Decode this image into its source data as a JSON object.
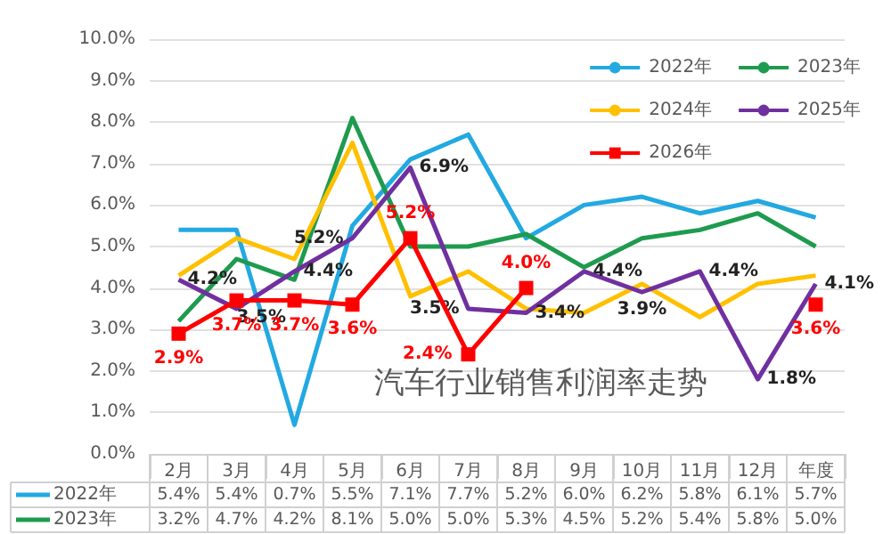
{
  "chart_data": {
    "type": "line",
    "title": "汽车行业销售利润率走势",
    "categories": [
      "2月",
      "3月",
      "4月",
      "5月",
      "6月",
      "7月",
      "8月",
      "9月",
      "10月",
      "11月",
      "12月",
      "年度"
    ],
    "series": [
      {
        "name": "2022年",
        "color": "#22a9e1",
        "values": [
          5.4,
          5.4,
          0.7,
          5.5,
          7.1,
          7.7,
          5.2,
          6.0,
          6.2,
          5.8,
          6.1,
          5.7
        ],
        "value_labels": [
          "5.4%",
          "5.4%",
          "0.7%",
          "5.5%",
          "7.1%",
          "7.7%",
          "5.2%",
          "6.0%",
          "6.2%",
          "5.8%",
          "6.1%",
          "5.7%"
        ]
      },
      {
        "name": "2023年",
        "color": "#1e9b4e",
        "values": [
          3.2,
          4.7,
          4.2,
          8.1,
          5.0,
          5.0,
          5.3,
          4.5,
          5.2,
          5.4,
          5.8,
          5.0
        ],
        "value_labels": [
          "3.2%",
          "4.7%",
          "4.2%",
          "8.1%",
          "5.0%",
          "5.0%",
          "5.3%",
          "4.5%",
          "5.2%",
          "5.4%",
          "5.8%",
          "5.0%"
        ]
      },
      {
        "name": "2024年",
        "color": "#ffc000",
        "values": [
          4.3,
          5.2,
          4.7,
          7.5,
          3.8,
          4.4,
          3.5,
          3.4,
          4.1,
          3.3,
          4.1,
          4.3
        ]
      },
      {
        "name": "2025年",
        "color": "#7030a0",
        "values": [
          4.2,
          3.5,
          4.4,
          5.2,
          6.9,
          3.5,
          3.4,
          4.4,
          3.9,
          4.4,
          1.8,
          4.1
        ],
        "value_labels": [
          "4.2%",
          "3.5%",
          "4.4%",
          "5.2%",
          "6.9%",
          "3.5%",
          "3.4%",
          "4.4%",
          "3.9%",
          "4.4%",
          "1.8%",
          "4.1%"
        ]
      },
      {
        "name": "2026年",
        "color": "#ff0000",
        "marker": "square",
        "values": [
          2.9,
          3.7,
          3.7,
          3.6,
          5.2,
          2.4,
          4.0,
          null,
          null,
          null,
          null,
          3.6
        ],
        "value_labels": [
          "2.9%",
          "3.7%",
          "3.7%",
          "3.6%",
          "5.2%",
          "2.4%",
          "4.0%",
          null,
          null,
          null,
          null,
          "3.6%"
        ]
      }
    ],
    "marker": "none",
    "ylim": [
      0,
      10
    ],
    "yticks": [
      {
        "value": 0,
        "label": "0.0%"
      },
      {
        "value": 1,
        "label": "1.0%"
      },
      {
        "value": 2,
        "label": "2.0%"
      },
      {
        "value": 3,
        "label": "3.0%"
      },
      {
        "value": 4,
        "label": "4.0%"
      },
      {
        "value": 5,
        "label": "5.0%"
      },
      {
        "value": 6,
        "label": "6.0%"
      },
      {
        "value": 7,
        "label": "7.0%"
      },
      {
        "value": 8,
        "label": "8.0%"
      },
      {
        "value": 9,
        "label": "9.0%"
      },
      {
        "value": 10,
        "label": "10.0%"
      }
    ],
    "grid": "y",
    "legend": "top right"
  }
}
